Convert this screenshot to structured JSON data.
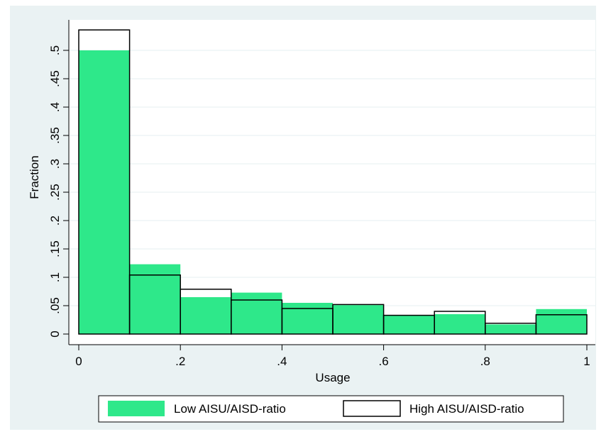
{
  "chart_data": {
    "type": "bar",
    "x_bin_edges": [
      0,
      0.1,
      0.2,
      0.3,
      0.4,
      0.5,
      0.6,
      0.7,
      0.8,
      0.9,
      1.0
    ],
    "series": [
      {
        "name": "Low AISU/AISD-ratio",
        "style": "filled",
        "color": "#2ee88a",
        "values": [
          0.5,
          0.123,
          0.065,
          0.073,
          0.055,
          0.051,
          0.033,
          0.035,
          0.017,
          0.044
        ]
      },
      {
        "name": "High AISU/AISD-ratio",
        "style": "outline",
        "color": "#000000",
        "values": [
          0.536,
          0.104,
          0.079,
          0.06,
          0.045,
          0.052,
          0.033,
          0.04,
          0.019,
          0.034
        ]
      }
    ],
    "xlabel": "Usage",
    "ylabel": "Fraction",
    "xlim": [
      0,
      1
    ],
    "ylim": [
      0,
      0.55
    ],
    "x_ticks": [
      0,
      0.2,
      0.4,
      0.6,
      0.8,
      1.0
    ],
    "x_tick_labels": [
      "0",
      ".2",
      ".4",
      ".6",
      ".8",
      "1"
    ],
    "y_ticks": [
      0,
      0.05,
      0.1,
      0.15,
      0.2,
      0.25,
      0.3,
      0.35,
      0.4,
      0.45,
      0.5
    ],
    "y_tick_labels": [
      "0",
      ".05",
      ".1",
      ".15",
      ".2",
      ".25",
      ".3",
      ".35",
      ".4",
      ".45",
      ".5"
    ],
    "grid": true,
    "legend_position": "bottom",
    "colors": {
      "outer_background": "#eaf2f3",
      "plot_background": "#ffffff",
      "grid": "#eaf2f3"
    }
  }
}
